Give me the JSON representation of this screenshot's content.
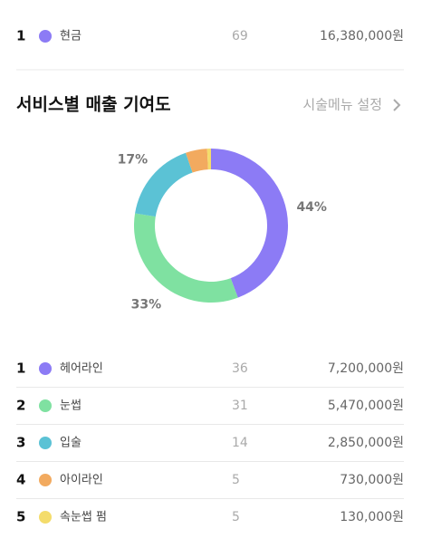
{
  "top_row": {
    "rank": 1,
    "name": "현금",
    "color": "#8c7bf5",
    "count": 69,
    "amount": "16,380,000원"
  },
  "section": {
    "title": "서비스별 매출 기여도",
    "link": "시술메뉴 설정"
  },
  "chart_data": {
    "type": "pie",
    "donut": true,
    "categories": [
      "헤어라인",
      "눈썹",
      "입술",
      "아이라인",
      "속눈썹 펌"
    ],
    "colors": [
      "#8c7bf5",
      "#7fe1a1",
      "#5bc2d5",
      "#f2aa5f",
      "#f4dc6b"
    ],
    "values": [
      44,
      33,
      17,
      4.5,
      0.8
    ],
    "value_labels": [
      "44%",
      "33%",
      "17%",
      null,
      null
    ]
  },
  "rows": [
    {
      "rank": 1,
      "count": 36,
      "amount": "7,200,000원"
    },
    {
      "rank": 2,
      "count": 31,
      "amount": "5,470,000원"
    },
    {
      "rank": 3,
      "count": 14,
      "amount": "2,850,000원"
    },
    {
      "rank": 4,
      "count": 5,
      "amount": "730,000원"
    },
    {
      "rank": 5,
      "count": 5,
      "amount": "130,000원"
    }
  ]
}
